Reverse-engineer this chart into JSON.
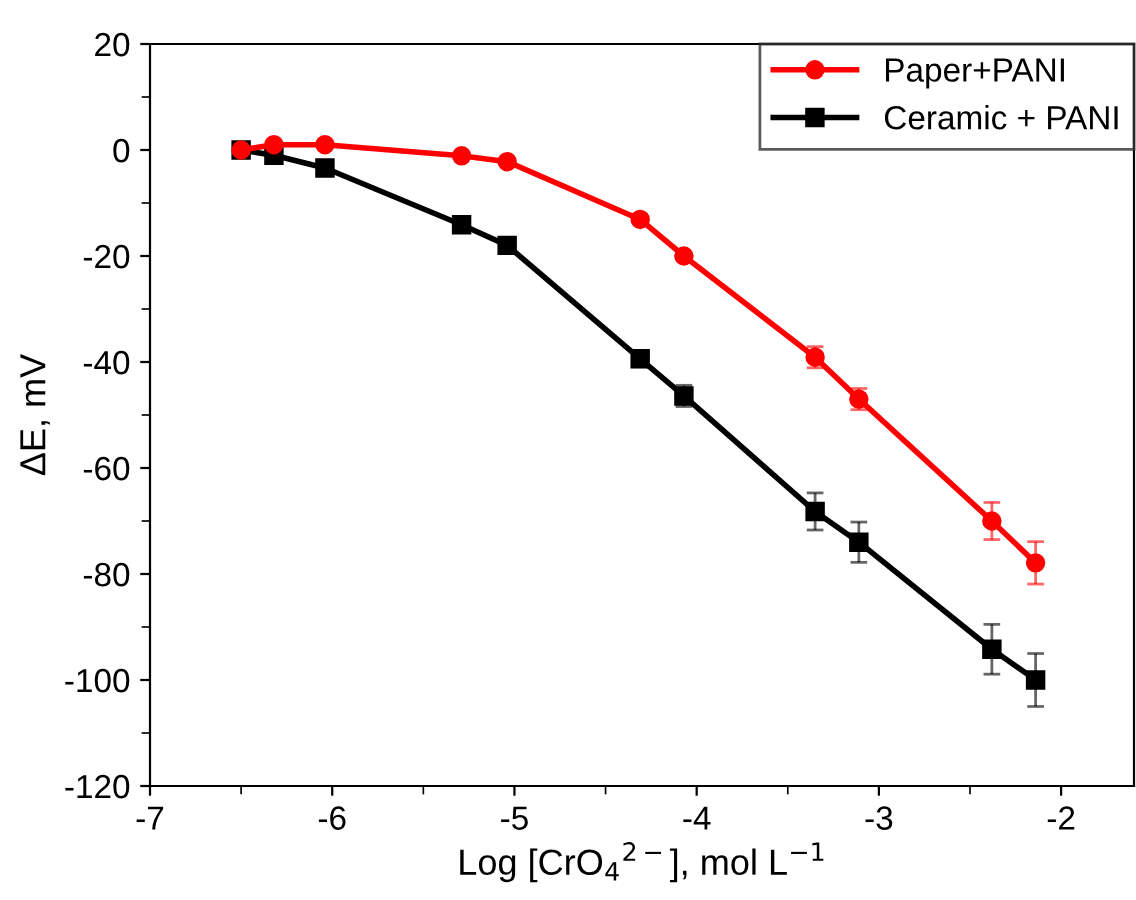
{
  "chart_data": {
    "type": "line",
    "xlabel": "Log [CrO$_{4}$$^{2−}$], mol L$^{−1}$",
    "ylabel": "ΔE, mV",
    "xlim": [
      -7,
      -1.6
    ],
    "ylim": [
      -120,
      20
    ],
    "xticks": [
      -7,
      -6,
      -5,
      -4,
      -3,
      -2
    ],
    "yticks": [
      -120,
      -100,
      -80,
      -60,
      -40,
      -20,
      0,
      20
    ],
    "legend": "top right",
    "grid": false,
    "line_style": "solid",
    "series": [
      {
        "name": "Paper+PANI",
        "color": "#ff0000",
        "marker": "circle",
        "x": [
          -6.5,
          -6.32,
          -6.04,
          -5.29,
          -5.04,
          -4.31,
          -4.07,
          -3.35,
          -3.11,
          -2.38,
          -2.14
        ],
        "values": [
          0,
          1,
          1,
          -1.1,
          -2.2,
          -13.1,
          -20,
          -39.1,
          -47,
          -70,
          -77.9
        ],
        "errors": [
          null,
          null,
          null,
          null,
          null,
          null,
          null,
          2,
          2,
          3.5,
          4
        ]
      },
      {
        "name": "Ceramic + PANI",
        "color": "#000000",
        "marker": "square",
        "x": [
          -6.5,
          -6.32,
          -6.04,
          -5.29,
          -5.04,
          -4.31,
          -4.07,
          -3.35,
          -3.11,
          -2.38,
          -2.14
        ],
        "values": [
          0,
          -1,
          -3.4,
          -14.1,
          -18,
          -39.4,
          -46.4,
          -68.2,
          -74,
          -94.2,
          -100
        ],
        "errors": [
          null,
          null,
          null,
          null,
          null,
          1.5,
          2,
          3.5,
          3.8,
          4.7,
          5
        ]
      }
    ]
  }
}
